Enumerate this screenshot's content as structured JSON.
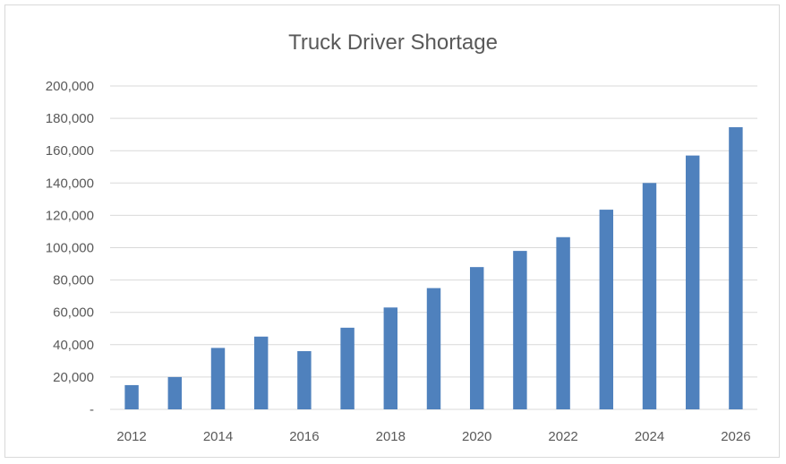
{
  "chart_data": {
    "type": "bar",
    "title": "Truck Driver Shortage",
    "xlabel": "",
    "ylabel": "",
    "categories": [
      "2012",
      "2013",
      "2014",
      "2015",
      "2016",
      "2017",
      "2018",
      "2019",
      "2020",
      "2021",
      "2022",
      "2023",
      "2024",
      "2025",
      "2026"
    ],
    "x_tick_labels": [
      "2012",
      "2014",
      "2016",
      "2018",
      "2020",
      "2022",
      "2024",
      "2026"
    ],
    "values": [
      15000,
      20000,
      38000,
      45000,
      36000,
      50500,
      63000,
      75000,
      88000,
      98000,
      106500,
      123500,
      140000,
      157000,
      174500
    ],
    "ylim": [
      0,
      200000
    ],
    "y_tick_labels": [
      "-",
      "20,000",
      "40,000",
      "60,000",
      "80,000",
      "100,000",
      "120,000",
      "140,000",
      "160,000",
      "180,000",
      "200,000"
    ],
    "grid": true,
    "legend": "none",
    "bar_color": "#4f81bd",
    "grid_color": "#d9d9d9"
  }
}
